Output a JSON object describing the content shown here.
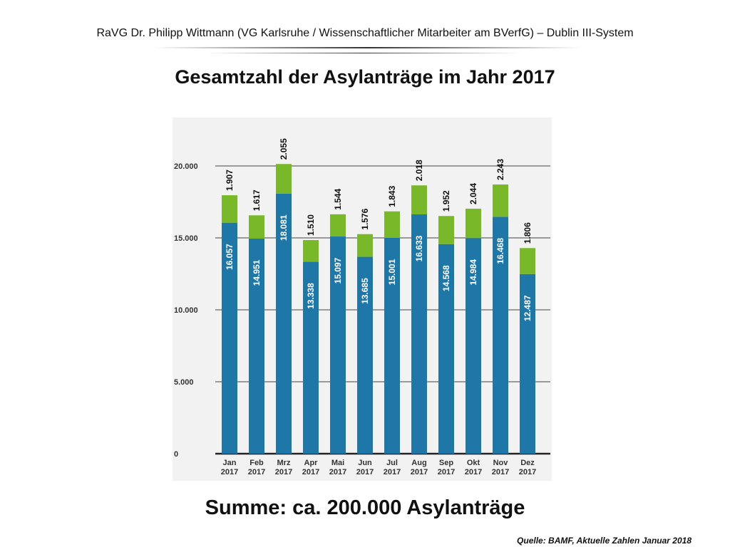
{
  "header": {
    "text": "RaVG Dr. Philipp Wittmann (VG Karlsruhe / Wissenschaftlicher Mitarbeiter am BVerfG) – Dublin III-System"
  },
  "slide": {
    "title": "Gesamtzahl der Asylanträge im Jahr 2017",
    "summary": "Summe: ca. 200.000 Asylanträge",
    "source": "Quelle: BAMF, Aktuelle Zahlen Januar 2018"
  },
  "chart_data": {
    "type": "bar",
    "stacked": true,
    "categories": [
      "Jan 2017",
      "Feb 2017",
      "Mrz 2017",
      "Apr 2017",
      "Mai 2017",
      "Jun 2017",
      "Jul 2017",
      "Aug 2017",
      "Sep 2017",
      "Okt 2017",
      "Nov 2017",
      "Dez 2017"
    ],
    "series": [
      {
        "color": "#1f77a8",
        "values": [
          16057,
          14951,
          18081,
          13338,
          15097,
          13685,
          15001,
          16633,
          14568,
          14984,
          16468,
          12487
        ],
        "labels": [
          "16.057",
          "14.951",
          "18.081",
          "13.338",
          "15.097",
          "13.685",
          "15.001",
          "16.633",
          "14.568",
          "14.984",
          "16.468",
          "12.487"
        ]
      },
      {
        "color": "#79b829",
        "values": [
          1907,
          1617,
          2055,
          1510,
          1544,
          1576,
          1843,
          2018,
          1952,
          2044,
          2243,
          1806
        ],
        "labels": [
          "1.907",
          "1.617",
          "2.055",
          "1.510",
          "1.544",
          "1.576",
          "1.843",
          "2.018",
          "1.952",
          "2.044",
          "2.243",
          "1.806"
        ]
      }
    ],
    "ylim": [
      0,
      20000
    ],
    "yticks": [
      0,
      5000,
      10000,
      15000,
      20000
    ],
    "ytick_labels": [
      "0",
      "5.000",
      "10.000",
      "15.000",
      "20.000"
    ],
    "grid": true,
    "title": "",
    "xlabel": "",
    "ylabel": ""
  }
}
